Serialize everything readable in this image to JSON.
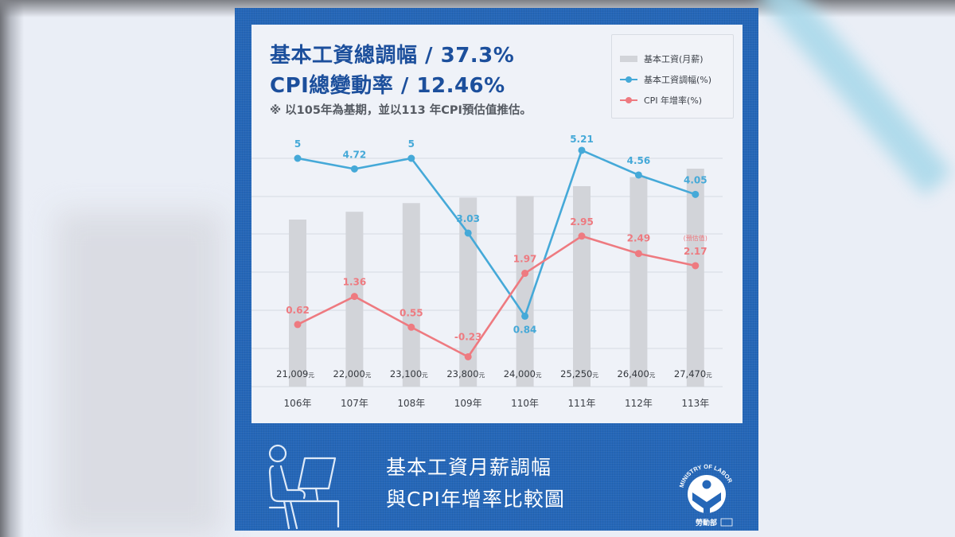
{
  "header": {
    "title_line1": "基本工資總調幅 / 37.3%",
    "title_line2": "CPI總變動率 / 12.46%",
    "note": "※ 以105年為基期，並以113 年CPI預估值推估。"
  },
  "legend": {
    "items": [
      {
        "label": "基本工資(月薪)",
        "type": "bar",
        "color": "#d2d4d9"
      },
      {
        "label": "基本工資調幅(%)",
        "type": "line",
        "color": "#45a9d8"
      },
      {
        "label": "CPI 年增率(%)",
        "type": "line",
        "color": "#ee7a80"
      }
    ]
  },
  "footer": {
    "title_line1": "基本工資月薪調幅",
    "title_line2": "與CPI年增率比較圖",
    "logo_text": "MINISTRY OF LABOR",
    "logo_name": "勞動部",
    "icon": "worker-at-computer-icon"
  },
  "colors": {
    "brand_blue": "#2567b8",
    "title_blue": "#1c4f9c",
    "wage_line": "#45a9d8",
    "cpi_line": "#ee7a80",
    "bar": "#d2d4d9"
  },
  "chart_data": {
    "type": "bar+line",
    "title": "基本工資月薪調幅與CPI年增率比較圖",
    "categories": [
      "106年",
      "107年",
      "108年",
      "109年",
      "110年",
      "111年",
      "112年",
      "113年"
    ],
    "bars": {
      "name": "基本工資(月薪)",
      "values": [
        21009,
        22000,
        23100,
        23800,
        24000,
        25250,
        26400,
        27470
      ],
      "labels": [
        "21,009元",
        "22,000元",
        "23,100元",
        "23,800元",
        "24,000元",
        "25,250元",
        "26,400元",
        "27,470元"
      ]
    },
    "series": [
      {
        "name": "基本工資調幅(%)",
        "values": [
          5,
          4.72,
          5,
          3.03,
          0.84,
          5.21,
          4.56,
          4.05
        ],
        "labels": [
          "5",
          "4.72",
          "5",
          "3.03",
          "0.84",
          "5.21",
          "4.56",
          "4.05"
        ]
      },
      {
        "name": "CPI 年增率(%)",
        "values": [
          0.62,
          1.36,
          0.55,
          -0.23,
          1.97,
          2.95,
          2.49,
          2.17
        ],
        "labels": [
          "0.62",
          "1.36",
          "0.55",
          "-0.23",
          "1.97",
          "2.95",
          "2.49",
          "2.17"
        ]
      }
    ],
    "annotations": [
      {
        "category": "113年",
        "series": "CPI 年增率(%)",
        "text": "(預估值)"
      }
    ],
    "grid": true,
    "legend_position": "top-right",
    "summary": {
      "wage_total_change": "37.3%",
      "cpi_total_change": "12.46%",
      "base_year": "105年"
    }
  }
}
